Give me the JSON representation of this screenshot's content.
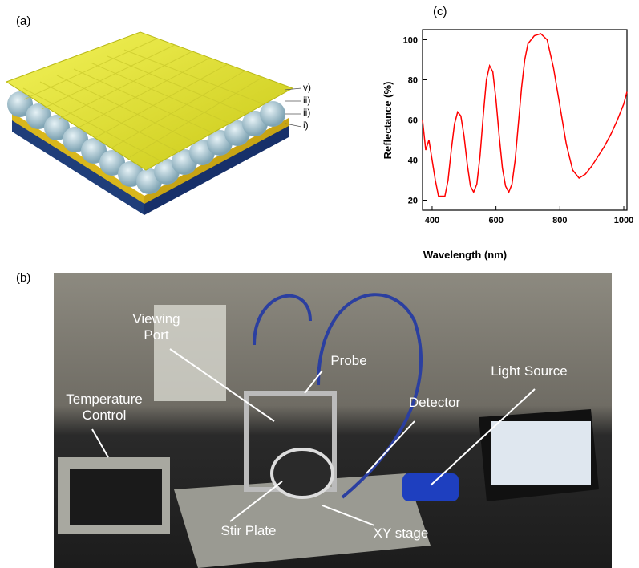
{
  "panel_labels": [
    "(a)",
    "(b)",
    "(c)"
  ],
  "layer_labels": [
    "v)",
    "ii)",
    "ii)",
    "i)"
  ],
  "chart_data": {
    "type": "line",
    "xlabel": "Wavelength (nm)",
    "ylabel": "Reflectance (%)",
    "x": [
      370,
      380,
      390,
      400,
      410,
      420,
      430,
      440,
      450,
      460,
      470,
      480,
      490,
      500,
      510,
      520,
      530,
      540,
      550,
      560,
      570,
      580,
      590,
      600,
      610,
      620,
      630,
      640,
      650,
      660,
      670,
      680,
      690,
      700,
      720,
      740,
      760,
      780,
      800,
      820,
      840,
      860,
      880,
      900,
      920,
      940,
      960,
      980,
      1000,
      1010
    ],
    "series": [
      {
        "color": "#ff0000",
        "values": [
          60,
          45,
          50,
          40,
          30,
          22,
          22,
          22,
          30,
          45,
          58,
          64,
          62,
          52,
          38,
          27,
          24,
          28,
          42,
          62,
          80,
          87,
          84,
          70,
          52,
          36,
          27,
          24,
          28,
          40,
          58,
          76,
          90,
          98,
          102,
          103,
          100,
          86,
          67,
          48,
          35,
          31,
          33,
          37,
          42,
          47,
          53,
          60,
          68,
          74
        ]
      }
    ],
    "xlim": [
      370,
      1010
    ],
    "ylim": [
      15,
      105
    ],
    "xticks": [
      400,
      600,
      800,
      1000
    ],
    "yticks": [
      20,
      40,
      60,
      80,
      100
    ]
  },
  "photo_labels": [
    "Viewing Port",
    "Probe",
    "Light Source",
    "Temperature Control",
    "Detector",
    "Stir Plate",
    "XY stage"
  ]
}
